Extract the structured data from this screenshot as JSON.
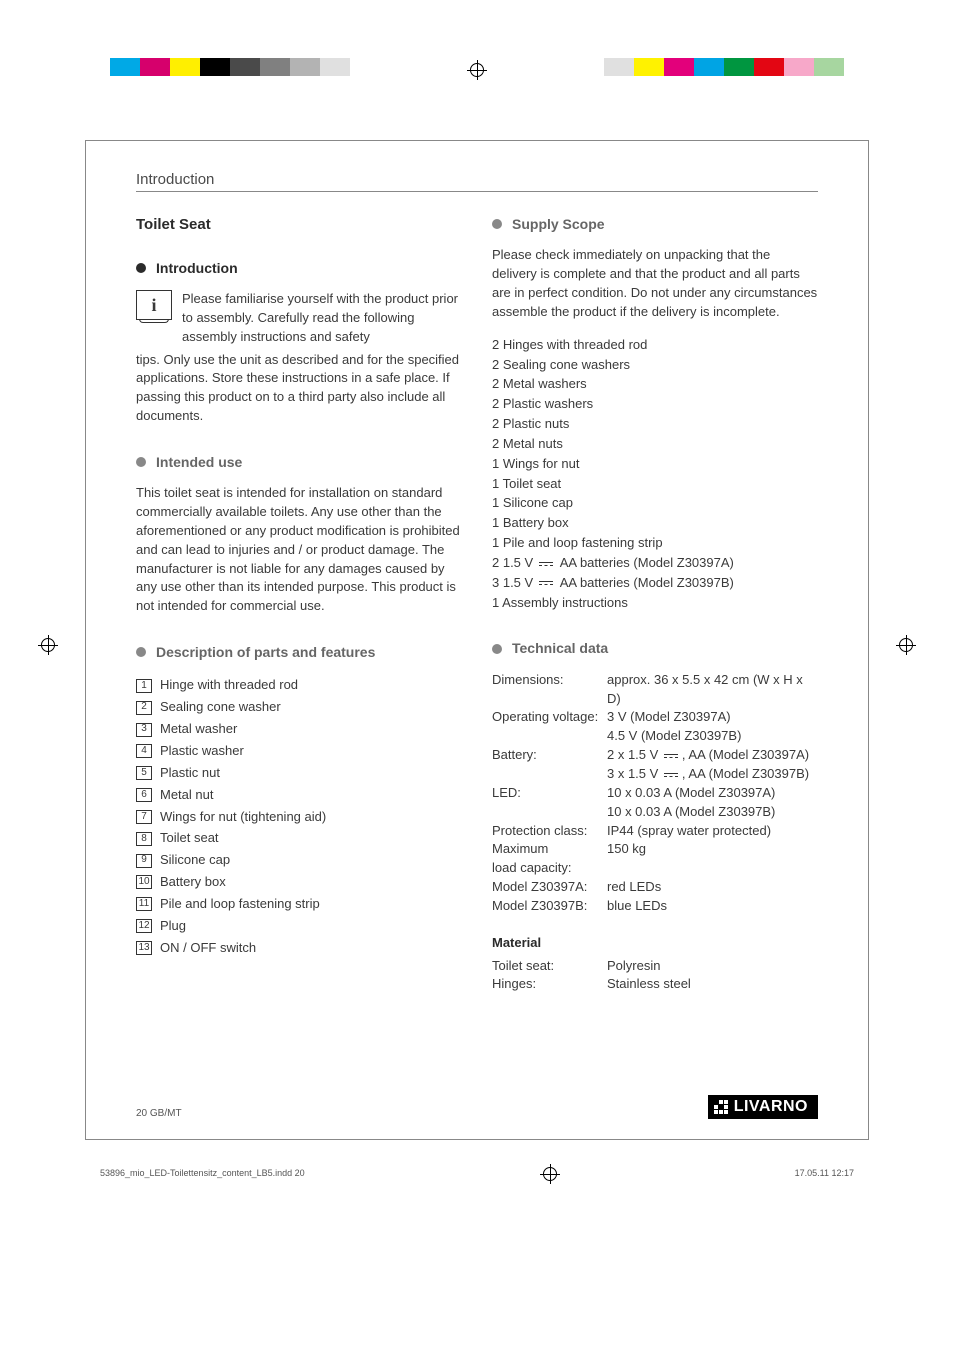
{
  "crop_bar": {
    "left_colors": [
      "#00a9e6",
      "#d6006c",
      "#ffef00",
      "#000000",
      "#4a4a4a",
      "#808080",
      "#b3b3b3",
      "#e0e0e0"
    ],
    "right_colors": [
      "#e0e0e0",
      "#fff200",
      "#e3007b",
      "#00a4e4",
      "#009640",
      "#e30613",
      "#f7a8c9",
      "#a7d6a0"
    ]
  },
  "running_head": "Introduction",
  "main_title": "Toilet Seat",
  "sections": {
    "introduction": {
      "title": "Introduction",
      "lead_inline": "Please familiarise yourself with the product prior to assembly. Carefully read the following assembly instructions and safety",
      "body": "tips. Only use the unit as described and for the specified applications. Store these instructions in a safe place. If passing this product on to a third party also include all documents."
    },
    "intended_use": {
      "title": "Intended use",
      "body": "This toilet seat is intended for installation on standard commercially available toilets. Any use other than the aforementioned or any product modification is prohibited and can lead to injuries and / or product damage. The manufacturer is not liable for any damages caused by any use other than its intended purpose. This product is not intended for commercial use."
    },
    "description": {
      "title": "Description of parts and features",
      "parts": [
        {
          "n": "1",
          "label": "Hinge with threaded rod"
        },
        {
          "n": "2",
          "label": "Sealing cone washer"
        },
        {
          "n": "3",
          "label": "Metal washer"
        },
        {
          "n": "4",
          "label": "Plastic washer"
        },
        {
          "n": "5",
          "label": "Plastic nut"
        },
        {
          "n": "6",
          "label": "Metal nut"
        },
        {
          "n": "7",
          "label": "Wings for nut (tightening aid)"
        },
        {
          "n": "8",
          "label": "Toilet seat"
        },
        {
          "n": "9",
          "label": "Silicone cap"
        },
        {
          "n": "10",
          "label": "Battery box"
        },
        {
          "n": "11",
          "label": "Pile and loop fastening strip"
        },
        {
          "n": "12",
          "label": "Plug"
        },
        {
          "n": "13",
          "label": "ON / OFF switch"
        }
      ]
    },
    "supply_scope": {
      "title": "Supply Scope",
      "intro": "Please check immediately on unpacking that the delivery is complete and that the product and all parts are in perfect condition. Do not under any circumstances assemble the product if the delivery is incomplete.",
      "items": [
        "2 Hinges with threaded rod",
        "2 Sealing cone washers",
        "2 Metal washers",
        "2 Plastic washers",
        "2 Plastic nuts",
        "2 Metal nuts",
        "1 Wings for nut",
        "1 Toilet seat",
        "1 Silicone cap",
        "1 Battery box",
        "1 Pile and loop fastening strip"
      ],
      "battery_a_prefix": "2 1.5 V ",
      "battery_a_suffix": " AA batteries (Model Z30397A)",
      "battery_b_prefix": "3 1.5 V ",
      "battery_b_suffix": " AA batteries (Model Z30397B)",
      "last_item": "1 Assembly instructions"
    },
    "technical": {
      "title": "Technical data",
      "rows": [
        {
          "label": "Dimensions:",
          "value": "approx. 36 x 5.5 x 42 cm (W x H x D)"
        },
        {
          "label": "Operating voltage:",
          "value": "3 V (Model Z30397A)\n4.5 V (Model Z30397B)"
        }
      ],
      "battery_label": "Battery:",
      "battery_a_prefix": "2 x 1.5 V ",
      "battery_a_suffix": ", AA (Model Z30397A)",
      "battery_b_prefix": "3 x 1.5 V ",
      "battery_b_suffix": ", AA (Model Z30397B)",
      "rows2": [
        {
          "label": "LED:",
          "value": "10 x 0.03 A (Model Z30397A)\n10 x 0.03 A (Model Z30397B)"
        },
        {
          "label": "Protection class:",
          "value": "IP44 (spray water protected)"
        },
        {
          "label": "Maximum\nload capacity:",
          "value": "150 kg"
        },
        {
          "label": "Model Z30397A:",
          "value": "red LEDs"
        },
        {
          "label": "Model Z30397B:",
          "value": "blue LEDs"
        }
      ],
      "material_head": "Material",
      "material_rows": [
        {
          "label": "Toilet seat:",
          "value": "Polyresin"
        },
        {
          "label": "Hinges:",
          "value": "Stainless steel"
        }
      ]
    }
  },
  "footer": {
    "page_label": "20    GB/MT",
    "brand": "LIVARNO"
  },
  "indd": {
    "file": "53896_mio_LED-Toilettensitz_content_LB5.indd   20",
    "date": "17.05.11   12:17"
  }
}
